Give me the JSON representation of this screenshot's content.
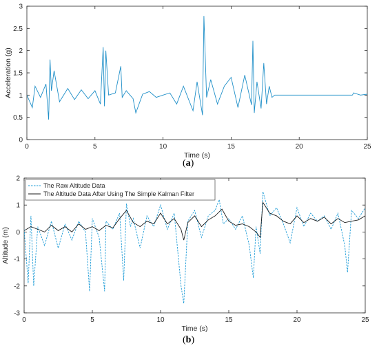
{
  "chart_data": [
    {
      "type": "line",
      "panel_label": "a",
      "xlabel": "Time (s)",
      "ylabel": "Acceleration (g)",
      "xlim": [
        0,
        25
      ],
      "ylim": [
        0,
        3
      ],
      "xticks": [
        0,
        5,
        10,
        15,
        20,
        25
      ],
      "yticks": [
        0,
        0.5,
        1,
        1.5,
        2,
        2.5,
        3
      ],
      "grid": false,
      "color": "#1f8fc8",
      "series": [
        {
          "x": [
            0,
            0.4,
            0.6,
            1.0,
            1.4,
            1.6,
            1.7,
            1.8,
            2.0,
            2.4,
            3.0,
            3.5,
            4.0,
            4.5,
            5.0,
            5.4,
            5.6,
            5.7,
            5.8,
            6.0,
            6.5,
            6.9,
            7.0,
            7.3,
            7.8,
            8.0,
            8.5,
            9.0,
            9.5,
            10.0,
            10.5,
            11.0,
            11.5,
            12.2,
            12.5,
            12.9,
            13.0,
            13.2,
            13.5,
            14.0,
            14.5,
            15.0,
            15.5,
            16.0,
            16.5,
            16.6,
            16.7,
            16.9,
            17.2,
            17.4,
            17.6,
            17.8,
            18.0,
            18.2,
            18.5,
            20.0,
            22.0,
            23.9,
            24.0,
            24.5,
            25.0
          ],
          "y": [
            1.0,
            0.72,
            1.2,
            0.95,
            1.25,
            0.45,
            1.8,
            1.1,
            1.55,
            0.85,
            1.15,
            0.9,
            1.12,
            0.92,
            1.1,
            0.8,
            2.08,
            0.75,
            2.0,
            1.0,
            1.05,
            1.65,
            0.95,
            1.1,
            0.92,
            0.6,
            1.02,
            1.08,
            0.95,
            1.0,
            1.05,
            0.8,
            1.2,
            0.65,
            1.3,
            0.55,
            2.78,
            0.95,
            1.35,
            0.8,
            1.2,
            1.4,
            0.72,
            1.45,
            0.78,
            2.22,
            0.6,
            1.3,
            0.7,
            1.72,
            0.8,
            1.2,
            0.95,
            1.0,
            1.0,
            1.0,
            1.0,
            1.0,
            1.05,
            1.0,
            1.02
          ]
        }
      ]
    },
    {
      "type": "line",
      "panel_label": "b",
      "xlabel": "Time (s)",
      "ylabel": "Altitude (m)",
      "xlim": [
        0,
        25
      ],
      "ylim": [
        -3,
        2
      ],
      "xticks": [
        0,
        5,
        10,
        15,
        20,
        25
      ],
      "yticks": [
        -3,
        -2,
        -1,
        0,
        1,
        2
      ],
      "grid": false,
      "legend_position": "top-left",
      "series": [
        {
          "name": "The Raw Altitude Data",
          "color": "#1e9cd7",
          "style": "dashed",
          "x": [
            0,
            0.3,
            0.5,
            0.7,
            1.0,
            1.5,
            2.0,
            2.5,
            3.0,
            3.5,
            4.0,
            4.5,
            4.8,
            5.0,
            5.5,
            5.9,
            6.0,
            6.5,
            7.0,
            7.3,
            7.5,
            7.8,
            8.0,
            8.5,
            9.0,
            9.5,
            10.0,
            10.5,
            11.0,
            11.5,
            11.7,
            12.0,
            12.5,
            13.0,
            13.5,
            14.0,
            14.3,
            14.6,
            15.0,
            15.5,
            16.0,
            16.5,
            16.8,
            17.0,
            17.3,
            17.5,
            18.0,
            18.5,
            19.0,
            19.5,
            20.0,
            20.5,
            21.0,
            21.5,
            22.0,
            22.5,
            23.0,
            23.5,
            23.7,
            24.0,
            24.5,
            25.0
          ],
          "y": [
            0.1,
            -1.9,
            0.6,
            -2.0,
            0.2,
            -0.5,
            0.4,
            -0.6,
            0.3,
            -0.3,
            0.4,
            0.0,
            -2.2,
            0.5,
            -0.2,
            -2.2,
            0.4,
            0.1,
            0.7,
            -1.8,
            1.05,
            0.2,
            0.5,
            -0.6,
            0.6,
            0.2,
            1.0,
            0.1,
            0.7,
            -2.0,
            -2.65,
            0.4,
            0.8,
            -0.2,
            0.6,
            0.8,
            1.2,
            0.3,
            0.5,
            0.1,
            0.6,
            -0.5,
            -1.7,
            0.2,
            -0.8,
            1.5,
            0.6,
            0.9,
            0.3,
            -0.4,
            0.9,
            0.2,
            0.7,
            0.4,
            0.6,
            0.1,
            0.7,
            -0.5,
            -1.5,
            0.8,
            0.5,
            0.9
          ]
        },
        {
          "name": "The Altitude Data After Using The Simple Kalman Filter",
          "color": "#1a1a1a",
          "style": "solid",
          "x": [
            0,
            0.5,
            1.0,
            1.5,
            2.0,
            2.5,
            3.0,
            3.5,
            4.0,
            4.5,
            5.0,
            5.5,
            6.0,
            6.5,
            7.0,
            7.5,
            8.0,
            8.5,
            9.0,
            9.5,
            10.0,
            10.5,
            11.0,
            11.5,
            11.7,
            12.0,
            12.5,
            13.0,
            13.5,
            14.0,
            14.5,
            15.0,
            15.5,
            16.0,
            16.5,
            17.0,
            17.3,
            17.5,
            18.0,
            18.5,
            19.0,
            19.5,
            20.0,
            20.5,
            21.0,
            21.5,
            22.0,
            22.5,
            23.0,
            23.5,
            24.0,
            24.5,
            25.0
          ],
          "y": [
            0.05,
            0.2,
            0.1,
            0.0,
            0.25,
            0.05,
            0.2,
            0.0,
            0.3,
            0.1,
            0.2,
            0.05,
            0.25,
            0.15,
            0.5,
            0.8,
            0.35,
            0.2,
            0.4,
            0.3,
            0.7,
            0.3,
            0.5,
            0.1,
            -0.3,
            0.35,
            0.6,
            0.2,
            0.45,
            0.6,
            0.85,
            0.4,
            0.25,
            0.3,
            0.2,
            0.0,
            -0.2,
            1.1,
            0.7,
            0.6,
            0.4,
            0.3,
            0.6,
            0.35,
            0.5,
            0.4,
            0.55,
            0.3,
            0.5,
            0.35,
            0.4,
            0.45,
            0.6
          ]
        }
      ]
    }
  ]
}
